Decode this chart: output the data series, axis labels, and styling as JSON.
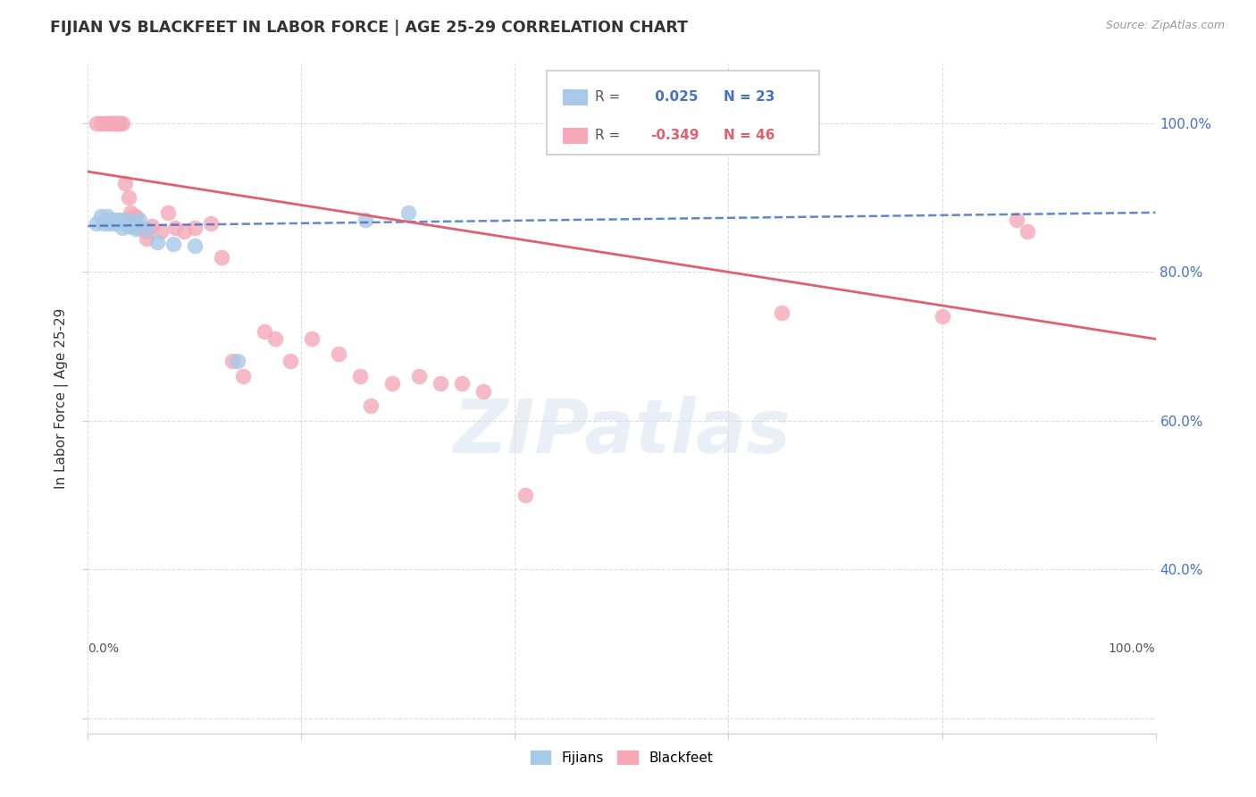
{
  "title": "FIJIAN VS BLACKFEET IN LABOR FORCE | AGE 25-29 CORRELATION CHART",
  "source": "Source: ZipAtlas.com",
  "ylabel": "In Labor Force | Age 25-29",
  "xlim": [
    0.0,
    1.0
  ],
  "ylim": [
    0.18,
    1.08
  ],
  "fijian_color": "#a8c8e8",
  "blackfeet_color": "#f4a8b8",
  "fijian_R": 0.025,
  "fijian_N": 23,
  "blackfeet_R": -0.349,
  "blackfeet_N": 46,
  "fijian_trend_intercept": 0.862,
  "fijian_trend_slope": 0.018,
  "blackfeet_trend_intercept": 0.935,
  "blackfeet_trend_slope": -0.225,
  "fijian_x": [
    0.008,
    0.012,
    0.015,
    0.018,
    0.02,
    0.022,
    0.025,
    0.027,
    0.03,
    0.032,
    0.035,
    0.038,
    0.04,
    0.042,
    0.045,
    0.048,
    0.055,
    0.065,
    0.08,
    0.1,
    0.14,
    0.26,
    0.3
  ],
  "fijian_y": [
    0.865,
    0.875,
    0.865,
    0.875,
    0.865,
    0.87,
    0.865,
    0.87,
    0.87,
    0.86,
    0.87,
    0.862,
    0.862,
    0.868,
    0.858,
    0.87,
    0.858,
    0.84,
    0.838,
    0.835,
    0.68,
    0.87,
    0.88
  ],
  "blackfeet_x": [
    0.008,
    0.012,
    0.015,
    0.018,
    0.02,
    0.022,
    0.025,
    0.025,
    0.028,
    0.03,
    0.032,
    0.035,
    0.038,
    0.04,
    0.042,
    0.045,
    0.048,
    0.055,
    0.055,
    0.06,
    0.068,
    0.075,
    0.082,
    0.09,
    0.1,
    0.115,
    0.125,
    0.135,
    0.145,
    0.165,
    0.175,
    0.19,
    0.21,
    0.235,
    0.255,
    0.265,
    0.285,
    0.31,
    0.33,
    0.35,
    0.37,
    0.41,
    0.65,
    0.8,
    0.87,
    0.88
  ],
  "blackfeet_y": [
    1.0,
    1.0,
    1.0,
    1.0,
    1.0,
    1.0,
    1.0,
    1.0,
    1.0,
    1.0,
    1.0,
    0.92,
    0.9,
    0.88,
    0.875,
    0.875,
    0.86,
    0.855,
    0.845,
    0.862,
    0.855,
    0.88,
    0.86,
    0.855,
    0.86,
    0.865,
    0.82,
    0.68,
    0.66,
    0.72,
    0.71,
    0.68,
    0.71,
    0.69,
    0.66,
    0.62,
    0.65,
    0.66,
    0.65,
    0.65,
    0.64,
    0.5,
    0.745,
    0.74,
    0.87,
    0.855
  ],
  "watermark_text": "ZIPatlas",
  "background_color": "#ffffff",
  "grid_color": "#dddddd",
  "right_axis_color": "#4472c4",
  "right_ytick_values": [
    1.0,
    0.8,
    0.6,
    0.4
  ],
  "trend_blue_color": "#4472c4",
  "trend_pink_color": "#e06070",
  "legend_fijian_color": "#4472c4",
  "legend_blackfeet_color": "#e06070"
}
